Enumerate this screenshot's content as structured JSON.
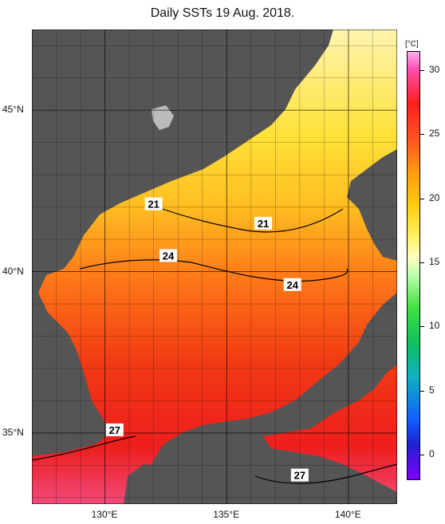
{
  "title": "Daily SSTs 19 Aug. 2018.",
  "lat_labels": [
    {
      "text": "45°N",
      "value": 45
    },
    {
      "text": "40°N",
      "value": 40
    },
    {
      "text": "35°N",
      "value": 35
    }
  ],
  "lon_labels": [
    {
      "text": "130°E",
      "value": 130
    },
    {
      "text": "135°E",
      "value": 135
    },
    {
      "text": "140°E",
      "value": 140
    }
  ],
  "contour_labels": [
    {
      "text": "21",
      "lon": 132.0,
      "lat": 42.1
    },
    {
      "text": "21",
      "lon": 136.5,
      "lat": 41.5
    },
    {
      "text": "24",
      "lon": 132.6,
      "lat": 40.5
    },
    {
      "text": "24",
      "lon": 137.7,
      "lat": 39.6
    },
    {
      "text": "27",
      "lon": 130.4,
      "lat": 35.1
    },
    {
      "text": "27",
      "lon": 138.0,
      "lat": 33.7
    }
  ],
  "colorbar": {
    "unit": "[°C]",
    "ticks": [
      "30",
      "25",
      "20",
      "15",
      "10",
      "5",
      "0"
    ],
    "tick_values": [
      30,
      25,
      20,
      15,
      10,
      5,
      0
    ],
    "min": -2,
    "max": 31.5
  },
  "colors": {
    "land": "#555555",
    "background": "#ffffff"
  }
}
